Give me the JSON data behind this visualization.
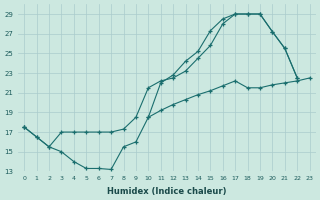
{
  "xlabel": "Humidex (Indice chaleur)",
  "bg_color": "#cce8e0",
  "grid_color": "#aacccc",
  "line_color": "#1a6e6e",
  "xlim": [
    -0.5,
    23.5
  ],
  "ylim": [
    13,
    30
  ],
  "yticks": [
    13,
    15,
    17,
    19,
    21,
    23,
    25,
    27,
    29
  ],
  "xticks": [
    0,
    1,
    2,
    3,
    4,
    5,
    6,
    7,
    8,
    9,
    10,
    11,
    12,
    13,
    14,
    15,
    16,
    17,
    18,
    19,
    20,
    21,
    22,
    23
  ],
  "s1_x": [
    0,
    1,
    2,
    3,
    4,
    5,
    6,
    7,
    8,
    9,
    10,
    11,
    12,
    13,
    14,
    15,
    16,
    17,
    18,
    19,
    20,
    21,
    22,
    23
  ],
  "s1_y": [
    17.5,
    16.5,
    15.5,
    15.0,
    14.0,
    13.3,
    13.3,
    13.2,
    15.5,
    16.0,
    18.5,
    22.0,
    22.8,
    24.2,
    25.2,
    27.3,
    28.5,
    29.0,
    29.0,
    29.0,
    27.2,
    25.5,
    22.5,
    null
  ],
  "s2_x": [
    0,
    1,
    2,
    3,
    4,
    5,
    6,
    7,
    8,
    9,
    10,
    11,
    12,
    13,
    14,
    15,
    16,
    17,
    18,
    19,
    20,
    21,
    22,
    23
  ],
  "s2_y": [
    17.5,
    16.5,
    15.5,
    17.0,
    17.0,
    17.0,
    17.0,
    17.0,
    17.3,
    18.5,
    21.5,
    22.2,
    22.5,
    23.2,
    24.5,
    25.8,
    28.0,
    29.0,
    29.0,
    29.0,
    27.2,
    25.5,
    22.5,
    null
  ],
  "s3_x": [
    0,
    1,
    2,
    3,
    4,
    5,
    6,
    7,
    8,
    9,
    10,
    11,
    12,
    13,
    14,
    15,
    16,
    17,
    18,
    19,
    20,
    21,
    22,
    23
  ],
  "s3_y": [
    17.5,
    null,
    null,
    null,
    null,
    null,
    null,
    null,
    null,
    null,
    18.5,
    19.2,
    19.8,
    20.3,
    20.8,
    21.2,
    21.7,
    22.2,
    21.5,
    21.5,
    21.8,
    22.0,
    22.2,
    22.5
  ]
}
